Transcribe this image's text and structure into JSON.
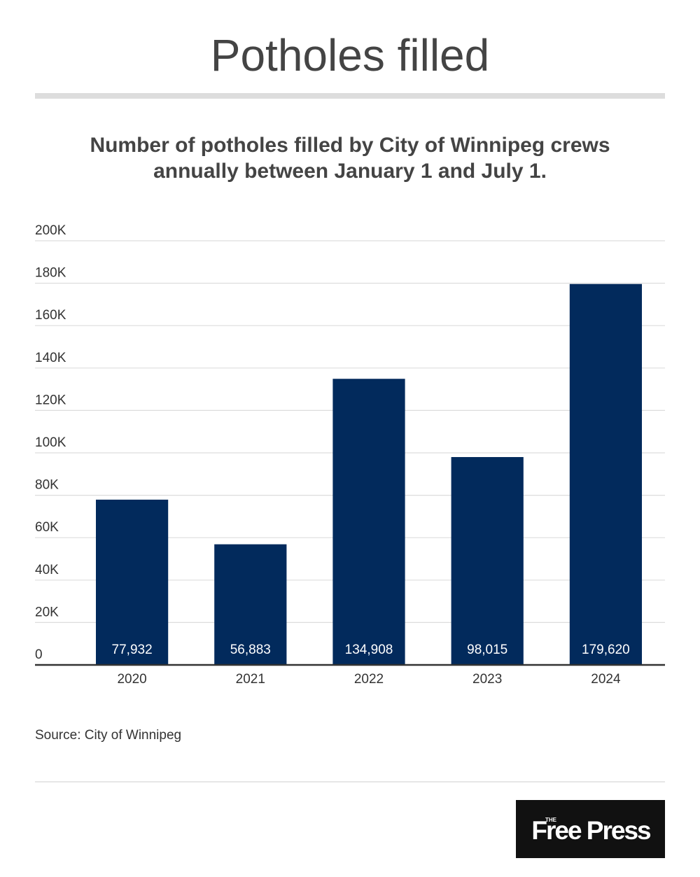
{
  "chart_data": {
    "type": "bar",
    "title": "Potholes filled",
    "subtitle": [
      "Number of potholes filled by City of Winnipeg crews",
      "annually between January 1 and July 1."
    ],
    "categories": [
      "2020",
      "2021",
      "2022",
      "2023",
      "2024"
    ],
    "values": [
      77932,
      56883,
      134908,
      98015,
      179620
    ],
    "value_labels": [
      "77,932",
      "56,883",
      "134,908",
      "98,015",
      "179,620"
    ],
    "color": "#022a5c",
    "ylim": [
      0,
      200000
    ],
    "yticks": [
      0,
      {
        "value": 20000,
        "label": "20K"
      },
      {
        "value": 40000,
        "label": "40K"
      },
      {
        "value": 60000,
        "label": "60K"
      },
      {
        "value": 80000,
        "label": "80K"
      },
      {
        "value": 100000,
        "label": "100K"
      },
      {
        "value": 120000,
        "label": "120K"
      },
      {
        "value": 140000,
        "label": "140K"
      },
      {
        "value": 160000,
        "label": "160K"
      },
      {
        "value": 180000,
        "label": "180K"
      },
      {
        "value": 200000,
        "label": "200K"
      }
    ],
    "grid": true,
    "source": "Source: City of Winnipeg",
    "logo": {
      "small": "THE",
      "name": "Free Press"
    }
  }
}
